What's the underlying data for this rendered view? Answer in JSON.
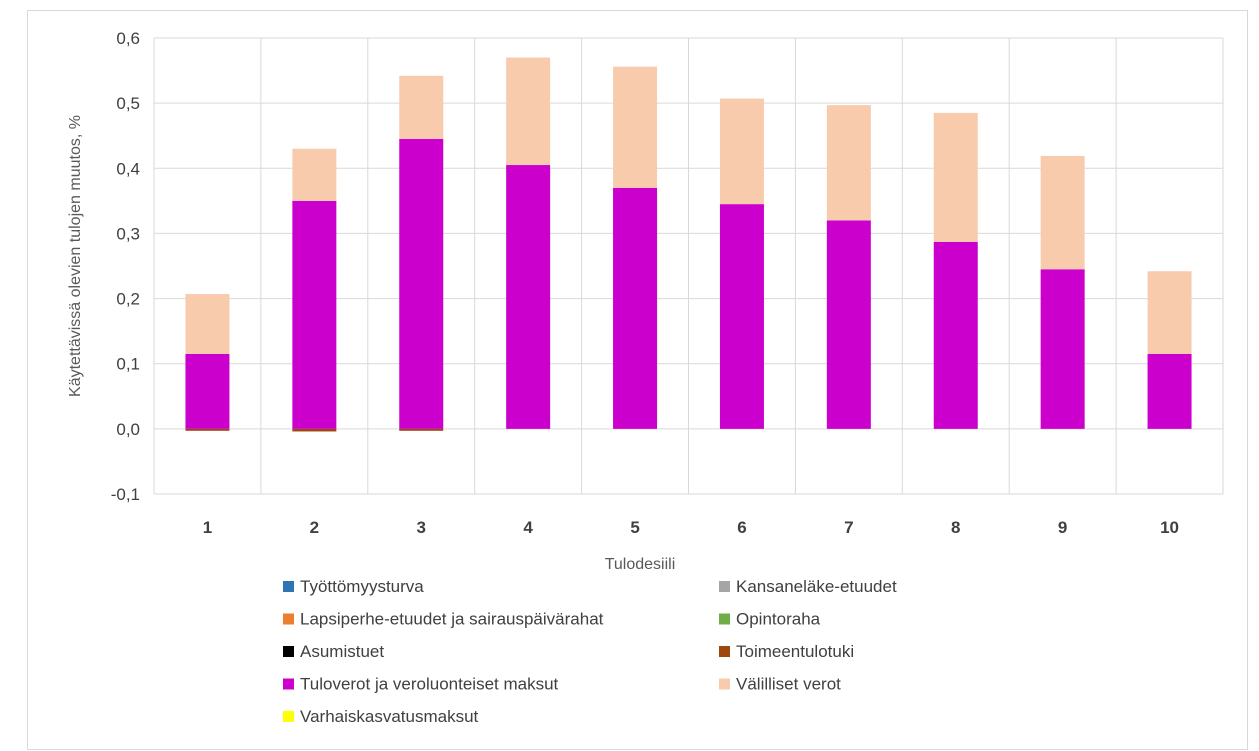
{
  "chart_data": {
    "type": "bar",
    "stacked": true,
    "title": "",
    "xlabel": "Tulodesiili",
    "ylabel": "Käytettävissä olevien tulojen muutos, %",
    "ylim": [
      -0.1,
      0.6
    ],
    "yticks": [
      -0.1,
      0.0,
      0.1,
      0.2,
      0.3,
      0.4,
      0.5,
      0.6
    ],
    "ytick_labels": [
      "-0,1",
      "0,0",
      "0,1",
      "0,2",
      "0,3",
      "0,4",
      "0,5",
      "0,6"
    ],
    "grid": true,
    "legend_position": "bottom",
    "categories": [
      "1",
      "2",
      "3",
      "4",
      "5",
      "6",
      "7",
      "8",
      "9",
      "10"
    ],
    "series": [
      {
        "name": "Työttömyysturva",
        "color": "#2e75b6",
        "values": [
          0,
          0,
          0,
          0,
          0,
          0,
          0,
          0,
          0,
          0
        ]
      },
      {
        "name": "Kansaneläke-etuudet",
        "color": "#a5a5a5",
        "values": [
          0,
          0,
          0,
          0,
          0,
          0,
          0,
          0,
          0,
          0
        ]
      },
      {
        "name": "Lapsiperhe-etuudet ja sairauspäivärahat",
        "color": "#ed7d31",
        "values": [
          0,
          0,
          0,
          0,
          0,
          0,
          0,
          0,
          0,
          0
        ]
      },
      {
        "name": "Opintoraha",
        "color": "#70ad47",
        "values": [
          0,
          0,
          0,
          0,
          0,
          0,
          0,
          0,
          0,
          0
        ]
      },
      {
        "name": "Asumistuet",
        "color": "#000000",
        "values": [
          0,
          0,
          0,
          0,
          0,
          0,
          0,
          0,
          0,
          0
        ]
      },
      {
        "name": "Toimeentulotuki",
        "color": "#9e480e",
        "values": [
          -0.003,
          -0.004,
          -0.003,
          0,
          0,
          0,
          0,
          0,
          0,
          0
        ]
      },
      {
        "name": "Tuloverot ja veroluonteiset maksut",
        "color": "#cc00cc",
        "values": [
          0.115,
          0.35,
          0.445,
          0.405,
          0.37,
          0.345,
          0.32,
          0.287,
          0.245,
          0.115
        ]
      },
      {
        "name": "Välilliset verot",
        "color": "#f8cbad",
        "values": [
          0.092,
          0.08,
          0.097,
          0.165,
          0.186,
          0.162,
          0.177,
          0.198,
          0.174,
          0.127
        ]
      },
      {
        "name": "Varhaiskasvatusmaksut",
        "color": "#ffff00",
        "values": [
          0,
          0,
          0,
          0,
          0,
          0,
          0,
          0,
          0,
          0
        ]
      }
    ],
    "legend_order": [
      "Työttömyysturva",
      "Kansaneläke-etuudet",
      "Lapsiperhe-etuudet ja sairauspäivärahat",
      "Opintoraha",
      "Asumistuet",
      "Toimeentulotuki",
      "Tuloverot ja veroluonteiset maksut",
      "Välilliset verot",
      "Varhaiskasvatusmaksut"
    ]
  }
}
